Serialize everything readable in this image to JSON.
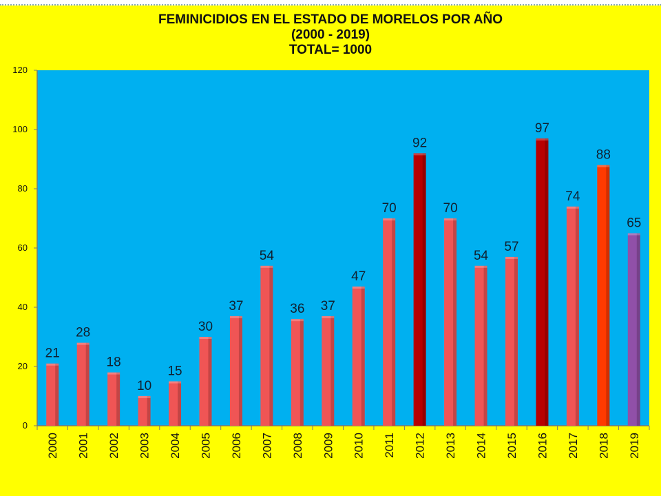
{
  "chart_data": {
    "type": "bar",
    "title": "FEMINICIDIOS EN EL ESTADO DE MORELOS POR AÑO",
    "subtitle": "(2000 - 2019)",
    "total_label": "TOTAL= 1000",
    "xlabel": "",
    "ylabel": "",
    "ylim": [
      0,
      120
    ],
    "yticks": [
      0,
      20,
      40,
      60,
      80,
      100,
      120
    ],
    "grid": false,
    "categories": [
      "2000",
      "2001",
      "2002",
      "2003",
      "2004",
      "2005",
      "2006",
      "2007",
      "2008",
      "2009",
      "2010",
      "2011",
      "2012",
      "2013",
      "2014",
      "2015",
      "2016",
      "2017",
      "2018",
      "2019"
    ],
    "values": [
      21,
      28,
      18,
      10,
      15,
      30,
      37,
      54,
      36,
      37,
      47,
      70,
      92,
      70,
      54,
      57,
      97,
      74,
      88,
      65
    ],
    "bar_colors": [
      "#f05555",
      "#f05555",
      "#f05555",
      "#f05555",
      "#f05555",
      "#f05555",
      "#f05555",
      "#f05555",
      "#f05555",
      "#f05555",
      "#f05555",
      "#f05555",
      "#b80000",
      "#f05555",
      "#f05555",
      "#f05555",
      "#b80000",
      "#f05555",
      "#ff3a00",
      "#9050a8"
    ],
    "plot_background": "#00b0f0",
    "page_background": "#ffff00"
  }
}
